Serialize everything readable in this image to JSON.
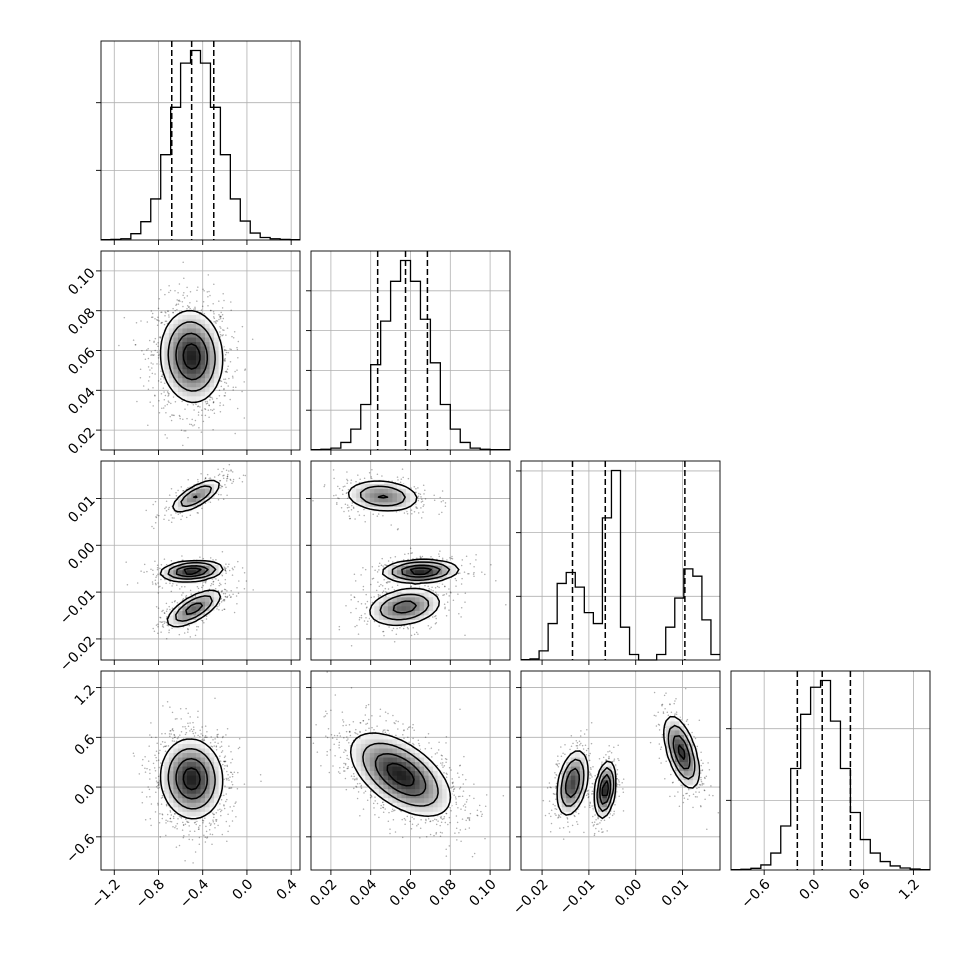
{
  "chart_data": {
    "type": "corner",
    "grid": true,
    "params": [
      {
        "range": [
          -1.32,
          0.48
        ],
        "ticks": [
          -1.2,
          -0.8,
          -0.4,
          0.0,
          0.4
        ],
        "tick_labels": [
          "−1.2",
          "−0.8",
          "−0.4",
          "0.0",
          "0.4"
        ],
        "quantiles": [
          -0.68,
          -0.5,
          -0.3
        ]
      },
      {
        "range": [
          0.01,
          0.11
        ],
        "ticks": [
          0.02,
          0.04,
          0.06,
          0.08,
          0.1
        ],
        "tick_labels": [
          "0.02",
          "0.04",
          "0.06",
          "0.08",
          "0.10"
        ],
        "quantiles": [
          0.0435,
          0.0575,
          0.0685
        ]
      },
      {
        "range": [
          -0.0245,
          0.018
        ],
        "ticks": [
          -0.02,
          -0.01,
          0.0,
          0.01
        ],
        "tick_labels": [
          "−0.02",
          "−0.01",
          "0.00",
          "0.01"
        ],
        "quantiles": [
          -0.0135,
          -0.0065,
          0.0105
        ]
      },
      {
        "range": [
          -1.0,
          1.4
        ],
        "ticks": [
          -0.6,
          0.0,
          0.6,
          1.2
        ],
        "tick_labels": [
          "−0.6",
          "0.0",
          "0.6",
          "1.2"
        ],
        "quantiles": [
          -0.2,
          0.1,
          0.44
        ]
      }
    ],
    "hist_grid_fractions": [
      [
        0.35,
        0.69
      ],
      [
        0.2,
        0.4,
        0.6,
        0.8
      ],
      [
        0.32,
        0.64,
        0.95
      ],
      [
        0.35,
        0.71
      ]
    ],
    "hists": [
      {
        "edges": [
          -1.32,
          0.48
        ],
        "counts": [
          1,
          2,
          4,
          20,
          58,
          130,
          270,
          420,
          560,
          600,
          560,
          420,
          270,
          130,
          60,
          22,
          8,
          4,
          2,
          1
        ]
      },
      {
        "edges": [
          0.01,
          0.11
        ],
        "counts": [
          1,
          2,
          5,
          20,
          55,
          120,
          225,
          340,
          445,
          500,
          445,
          345,
          230,
          120,
          55,
          20,
          5,
          2,
          1,
          1
        ]
      },
      {
        "edges": [
          -0.0245,
          0.018
        ],
        "counts": [
          1,
          3,
          25,
          100,
          210,
          240,
          200,
          130,
          100,
          390,
          520,
          90,
          15,
          0,
          0,
          15,
          90,
          170,
          250,
          230,
          110,
          15
        ]
      },
      {
        "edges": [
          -1.0,
          1.4
        ],
        "counts": [
          1,
          2,
          5,
          15,
          50,
          130,
          300,
          460,
          540,
          560,
          440,
          300,
          170,
          90,
          50,
          25,
          12,
          6,
          3,
          1
        ]
      }
    ],
    "pairs": [
      {
        "x": 0,
        "y": 1,
        "blobs": [
          {
            "cx": -0.5,
            "cy": 0.057,
            "sx": 0.14,
            "sy": 0.0115,
            "rho": -0.06,
            "w": 1.0,
            "n": 1300
          }
        ]
      },
      {
        "x": 0,
        "y": 2,
        "blobs": [
          {
            "cx": -0.46,
            "cy": 0.0105,
            "sx": 0.12,
            "sy": 0.0019,
            "rho": 0.72,
            "w": 0.6,
            "n": 330
          },
          {
            "cx": -0.5,
            "cy": -0.0055,
            "sx": 0.14,
            "sy": 0.0011,
            "rho": 0.2,
            "w": 1.0,
            "n": 420
          },
          {
            "cx": -0.48,
            "cy": -0.0135,
            "sx": 0.13,
            "sy": 0.0021,
            "rho": 0.68,
            "w": 0.7,
            "n": 420
          }
        ]
      },
      {
        "x": 1,
        "y": 2,
        "blobs": [
          {
            "cx": 0.046,
            "cy": 0.0105,
            "sx": 0.0098,
            "sy": 0.0018,
            "rho": -0.15,
            "w": 0.6,
            "n": 330
          },
          {
            "cx": 0.065,
            "cy": -0.0055,
            "sx": 0.0095,
            "sy": 0.0012,
            "rho": 0.1,
            "w": 1.0,
            "n": 420
          },
          {
            "cx": 0.057,
            "cy": -0.0132,
            "sx": 0.0095,
            "sy": 0.0021,
            "rho": 0.25,
            "w": 0.7,
            "n": 420
          }
        ]
      },
      {
        "x": 0,
        "y": 3,
        "blobs": [
          {
            "cx": -0.5,
            "cy": 0.1,
            "sx": 0.14,
            "sy": 0.24,
            "rho": -0.05,
            "w": 1.0,
            "n": 1300
          }
        ]
      },
      {
        "x": 1,
        "y": 3,
        "blobs": [
          {
            "cx": 0.055,
            "cy": 0.15,
            "sx": 0.0125,
            "sy": 0.25,
            "rho": -0.55,
            "w": 1.0,
            "n": 1300
          }
        ]
      },
      {
        "x": 2,
        "y": 3,
        "blobs": [
          {
            "cx": -0.0135,
            "cy": 0.05,
            "sx": 0.0017,
            "sy": 0.2,
            "rho": 0.35,
            "w": 0.75,
            "n": 430
          },
          {
            "cx": -0.0065,
            "cy": -0.03,
            "sx": 0.0011,
            "sy": 0.17,
            "rho": 0.3,
            "w": 0.9,
            "n": 420
          },
          {
            "cx": 0.0098,
            "cy": 0.42,
            "sx": 0.0019,
            "sy": 0.22,
            "rho": -0.55,
            "w": 0.8,
            "n": 430
          }
        ]
      }
    ],
    "levels": [
      0.135,
      0.32,
      0.6,
      0.86
    ]
  }
}
